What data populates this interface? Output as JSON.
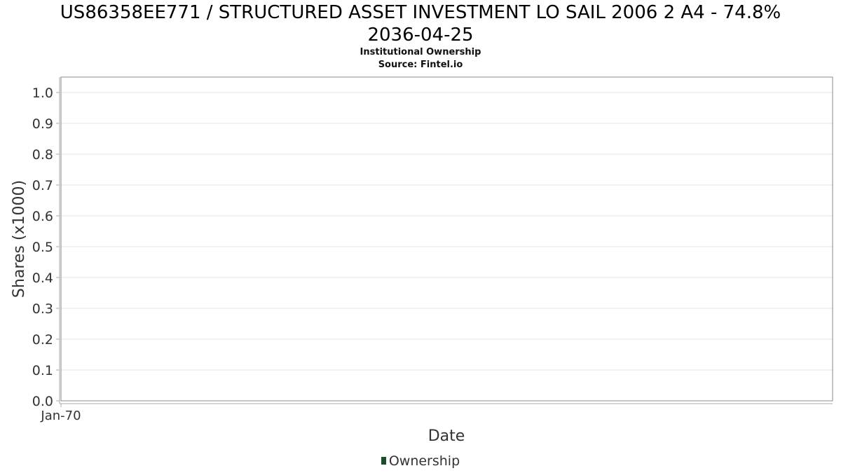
{
  "chart_data": {
    "type": "line",
    "title": "US86358EE771 / STRUCTURED ASSET INVESTMENT LO SAIL 2006 2 A4 - 74.8% 2036-04-25",
    "title_lines": [
      "US86358EE771 / STRUCTURED ASSET INVESTMENT LO SAIL 2006 2 A4 - 74.8%",
      "2036-04-25"
    ],
    "subtitle_lines": [
      "Institutional Ownership",
      "Source: Fintel.io"
    ],
    "xlabel": "Date",
    "ylabel": "Shares (x1000)",
    "ylim": [
      0,
      1.0
    ],
    "yticks": [
      "0.0",
      "0.1",
      "0.2",
      "0.3",
      "0.4",
      "0.5",
      "0.6",
      "0.7",
      "0.8",
      "0.9",
      "1.0"
    ],
    "xticks": [
      "Jan-70"
    ],
    "grid": true,
    "legend_position": "bottom-center",
    "series": [
      {
        "name": "Ownership",
        "color": "#1a4d2e",
        "values": []
      }
    ]
  }
}
